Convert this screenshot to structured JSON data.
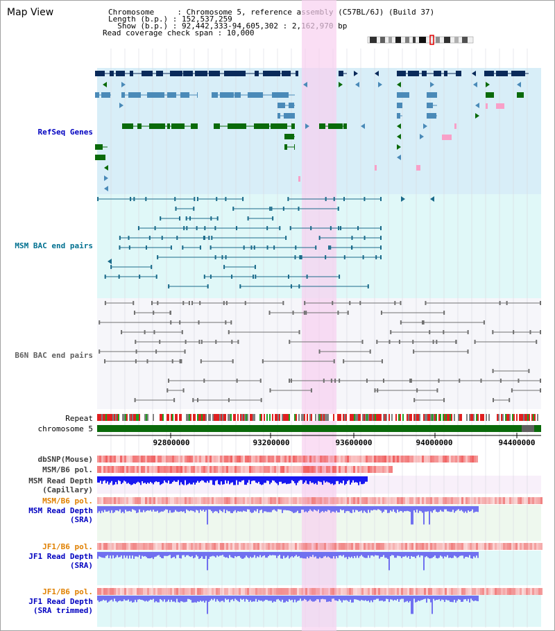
{
  "window": {
    "title": "Map View"
  },
  "info": {
    "chromosome_line": "Chromosome     : Chromosome 5, reference assembly (C57BL/6J) (Build 37)",
    "length_line": "Length (b.p.) : 152,537,259",
    "show_line": "  Show (b.p.) : 92,442,333-94,605,302 : 2,162,970 bp",
    "span_line": "Read coverage check span : 10,000"
  },
  "tracks": {
    "refseq": "RefSeq Genes",
    "msm_bac": "MSM BAC end pairs",
    "b6n_bac": "B6N BAC end pairs",
    "repeat": "Repeat",
    "chromosome": "chromosome 5",
    "dbsnp": "dbSNP(Mouse)",
    "msm_b6_pol_1": "MSM/B6 pol.",
    "msm_read_depth_cap_1": "MSM Read Depth",
    "msm_read_depth_cap_2": "(Capillary)",
    "msm_b6_pol_2": "MSM/B6 pol.",
    "msm_read_depth_sra_1": "MSM Read Depth",
    "msm_read_depth_sra_2": "(SRA)",
    "jf1_b6_pol_1": "JF1/B6 pol.",
    "jf1_read_depth_sra_1": "JF1 Read Depth",
    "jf1_read_depth_sra_2": "(SRA)",
    "jf1_b6_pol_2": "JF1/B6 pol.",
    "jf1_read_depth_trim_1": "JF1 Read Depth",
    "jf1_read_depth_trim_2": "(SRA trimmed)"
  },
  "axis": {
    "ticks": [
      "92800000",
      "93200000",
      "93600000",
      "94000000",
      "94400000"
    ]
  },
  "colors": {
    "highlight": "#f8d0f0",
    "refseq_bg": "#d8eef8",
    "msm_bac_bg": "#e0f8f8",
    "gene_dark": "#0a2a5a",
    "gene_mid": "#4a8ab8",
    "gene_green": "#0a6a0a",
    "bac_line": "#1a6a8a",
    "b6n_line": "#707070",
    "depth_blue": "#1818f0",
    "depth_light": "#7070f0",
    "snp": "#f06060",
    "label_blue": "#0000c0",
    "label_orange": "#e08000"
  }
}
